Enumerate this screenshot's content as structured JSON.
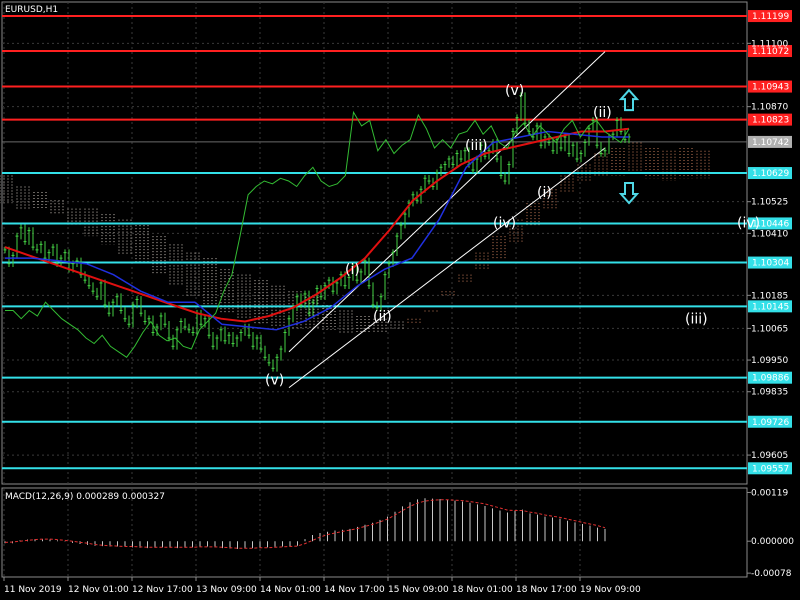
{
  "chart_data": {
    "type": "line",
    "title": "EURUSD,H1",
    "price_axis": {
      "ylim": [
        1.095,
        1.1125
      ],
      "ticks": [
        "1.11100",
        "1.10870",
        "1.10525",
        "1.10410",
        "1.10185",
        "1.10065",
        "1.09950",
        "1.09835",
        "1.09605"
      ]
    },
    "time_axis": {
      "labels": [
        "11 Nov 2019",
        "12 Nov 01:00",
        "12 Nov 17:00",
        "13 Nov 09:00",
        "14 Nov 01:00",
        "14 Nov 17:00",
        "15 Nov 09:00",
        "18 Nov 01:00",
        "18 Nov 17:00",
        "19 Nov 09:00"
      ]
    },
    "current_price": "1.10742",
    "horizontal_levels": {
      "resistance": [
        {
          "value": 1.11199,
          "label": "1.11199"
        },
        {
          "value": 1.11072,
          "label": "1.11072"
        },
        {
          "value": 1.10943,
          "label": "1.10943"
        },
        {
          "value": 1.10823,
          "label": "1.10823"
        }
      ],
      "support": [
        {
          "value": 1.10629,
          "label": "1.10629"
        },
        {
          "value": 1.10446,
          "label": "1.10446"
        },
        {
          "value": 1.10304,
          "label": "1.10304"
        },
        {
          "value": 1.10145,
          "label": "1.10145"
        },
        {
          "value": 1.09886,
          "label": "1.09886"
        },
        {
          "value": 1.09726,
          "label": "1.09726"
        },
        {
          "value": 1.09557,
          "label": "1.09557"
        }
      ]
    },
    "wave_labels": [
      {
        "text": "(v)",
        "x": 67,
        "y": 1.0988
      },
      {
        "text": "(i)",
        "x": 87,
        "y": 1.1028
      },
      {
        "text": "(ii)",
        "x": 94,
        "y": 1.1011
      },
      {
        "text": "(iii)",
        "x": 117,
        "y": 1.1073
      },
      {
        "text": "(iv)",
        "x": 124,
        "y": 1.1045
      },
      {
        "text": "(v)",
        "x": 127,
        "y": 1.1093
      },
      {
        "text": "(i)",
        "x": 135,
        "y": 1.1056
      },
      {
        "text": "(ii)",
        "x": 149,
        "y": 1.1085
      },
      {
        "text": "(iii)",
        "x": 172,
        "y": 1.101
      },
      {
        "text": "(iv)",
        "x": 185,
        "y": 1.1045
      }
    ],
    "channel": {
      "lower": [
        [
          71,
          1.0985
        ],
        [
          150,
          1.1072
        ]
      ],
      "upper": [
        [
          71,
          1.0998
        ],
        [
          150,
          1.1107
        ]
      ]
    },
    "arrows": [
      {
        "direction": "up",
        "x": 156,
        "y": 1.1089,
        "color": "#4FD8E6"
      },
      {
        "direction": "down",
        "x": 156,
        "y": 1.1056,
        "color": "#4FD8E6"
      }
    ],
    "series": [
      {
        "name": "",
        "color": "#44D144",
        "values": [
          1.1035,
          1.103,
          1.1033,
          1.104,
          1.1043,
          1.1038,
          1.1042,
          1.1036,
          1.1035,
          1.1037,
          1.1032,
          1.1034,
          1.1036,
          1.103,
          1.1032,
          1.1034,
          1.1028,
          1.103,
          1.1031,
          1.1026,
          1.1024,
          1.1022,
          1.102,
          1.1018,
          1.1023,
          1.1015,
          1.1012,
          1.1016,
          1.1018,
          1.1013,
          1.101,
          1.1008,
          1.1015,
          1.1017,
          1.1012,
          1.1009,
          1.101,
          1.1005,
          1.1007,
          1.1011,
          1.1008,
          1.1003,
          1.1,
          1.1006,
          1.1009,
          1.1007,
          1.1006,
          1.1005,
          1.1012,
          1.1008,
          1.101,
          1.1004,
          1.1,
          1.1003,
          1.1006,
          1.1002,
          1.1004,
          1.1001,
          1.1003,
          1.1005,
          1.1007,
          1.1004,
          1.1,
          1.1003,
          1.0999,
          1.0996,
          1.0994,
          1.0992,
          1.0996,
          1.0999,
          1.1005,
          1.101,
          1.1014,
          1.1018,
          1.1015,
          1.1019,
          1.1012,
          1.1016,
          1.1021,
          1.1018,
          1.1022,
          1.1024,
          1.102,
          1.1023,
          1.1026,
          1.1022,
          1.1025,
          1.1029,
          1.1024,
          1.1027,
          1.1031,
          1.1022,
          1.1015,
          1.1014,
          1.1018,
          1.1026,
          1.103,
          1.1034,
          1.104,
          1.1044,
          1.1048,
          1.1052,
          1.1055,
          1.1053,
          1.1057,
          1.1061,
          1.106,
          1.1058,
          1.1063,
          1.1065,
          1.1066,
          1.1068,
          1.1066,
          1.107,
          1.1068,
          1.1071,
          1.1066,
          1.1064,
          1.1068,
          1.1073,
          1.1069,
          1.1071,
          1.1074,
          1.1068,
          1.1062,
          1.106,
          1.1066,
          1.1078,
          1.1083,
          1.1091,
          1.1081,
          1.1078,
          1.1076,
          1.108,
          1.1073,
          1.1076,
          1.1074,
          1.1071,
          1.1075,
          1.1072,
          1.1076,
          1.107,
          1.1073,
          1.1068,
          1.107,
          1.1074,
          1.1079,
          1.1082,
          1.1073,
          1.107,
          1.1071,
          1.1076,
          1.1077,
          1.1082,
          1.1078,
          1.1075,
          1.1076
        ]
      },
      {
        "name": "",
        "color": "#E01010",
        "values": [
          1.1036,
          1.1033,
          1.103,
          1.1027,
          1.1024,
          1.1021,
          1.1018,
          1.1015,
          1.1012,
          1.101,
          1.1009,
          1.1011,
          1.1014,
          1.1019,
          1.1025,
          1.1032,
          1.1042,
          1.1053,
          1.106,
          1.1066,
          1.107,
          1.1072,
          1.1074,
          1.1076,
          1.1078,
          1.1078,
          1.1079
        ]
      },
      {
        "name": "",
        "color": "#2030E0",
        "values": [
          1.1032,
          1.1032,
          1.1031,
          1.103,
          1.1026,
          1.102,
          1.1016,
          1.1016,
          1.1008,
          1.1007,
          1.1006,
          1.1009,
          1.1014,
          1.1022,
          1.1028,
          1.1032,
          1.1046,
          1.1065,
          1.1074,
          1.1076,
          1.1078,
          1.1077,
          1.1076,
          1.1076
        ]
      },
      {
        "name": "",
        "color": "#33BB33",
        "values": [
          1.1013,
          1.1013,
          1.101,
          1.1013,
          1.1011,
          1.1016,
          1.1013,
          1.101,
          1.1008,
          1.1006,
          1.1003,
          1.1001,
          1.1004,
          1.1,
          1.0998,
          1.0996,
          1.1,
          1.1005,
          1.1009,
          1.1004,
          1.1002,
          1.1003,
          1.1,
          1.0999,
          1.1006,
          1.1009,
          1.1012,
          1.102,
          1.1026,
          1.104,
          1.1055,
          1.1058,
          1.106,
          1.1059,
          1.1061,
          1.106,
          1.1058,
          1.1062,
          1.1065,
          1.106,
          1.1058,
          1.1059,
          1.1062,
          1.1085,
          1.108,
          1.1082,
          1.1071,
          1.1075,
          1.107,
          1.1073,
          1.1075,
          1.1084,
          1.1079,
          1.1072,
          1.1075,
          1.1072,
          1.1077,
          1.1078,
          1.1082,
          1.1077,
          1.108,
          1.1074,
          1.1072,
          1.1078,
          1.1081,
          1.1076,
          1.108,
          1.1077,
          1.1074,
          1.1079,
          1.1082,
          1.1076,
          1.108,
          1.1082,
          1.1078,
          1.1076,
          1.1074,
          1.1079
        ]
      }
    ],
    "cloud": {
      "color_bear": "#F0E6DC",
      "color_bull": "#E8926A",
      "upper": [
        1.1062,
        1.1058,
        1.1056,
        1.1053,
        1.105,
        1.105,
        1.1048,
        1.1046,
        1.1044,
        1.104,
        1.1037,
        1.1034,
        1.1032,
        1.1028,
        1.1026,
        1.1024,
        1.1022,
        1.102,
        1.1018,
        1.1015,
        1.1013,
        1.1011,
        1.101,
        1.1009,
        1.101,
        1.1013,
        1.102,
        1.1026,
        1.1034,
        1.104,
        1.1046,
        1.1052,
        1.1057,
        1.1062,
        1.1066,
        1.107,
        1.1072,
        1.1074,
        1.1072,
        1.1071,
        1.1072,
        1.1071
      ],
      "lower": [
        1.1052,
        1.105,
        1.105,
        1.1048,
        1.1044,
        1.104,
        1.1037,
        1.1033,
        1.103,
        1.1026,
        1.1022,
        1.1018,
        1.1015,
        1.1012,
        1.101,
        1.1008,
        1.1007,
        1.1006,
        1.1006,
        1.1006,
        1.1005,
        1.1005,
        1.1005,
        1.1006,
        1.1008,
        1.1012,
        1.1018,
        1.1023,
        1.1028,
        1.1032,
        1.1038,
        1.1044,
        1.105,
        1.1056,
        1.106,
        1.1062,
        1.1062,
        1.1062,
        1.1061,
        1.106,
        1.1061,
        1.1061
      ]
    },
    "macd": {
      "title": "MACD(12,26,9) 0.000289 0.000327",
      "ylim": [
        -0.00085,
        0.00125
      ],
      "ticks": [
        "0.00119",
        "0.000000",
        "-0.00078"
      ],
      "histogram": [
        -5e-05,
        -5e-05,
        2e-05,
        4e-05,
        5e-05,
        5e-05,
        4e-05,
        2e-05,
        -1e-05,
        -4e-05,
        -7e-05,
        -9e-05,
        -0.00011,
        -0.00012,
        -0.00013,
        -0.00013,
        -0.00014,
        -0.00015,
        -0.00016,
        -0.00017,
        -0.00016,
        -0.00015,
        -0.00016,
        -0.00017,
        -0.00016,
        -0.00015,
        -0.00014,
        -0.00013,
        -0.00015,
        -0.00017,
        -0.00018,
        -0.00019,
        -0.00018,
        -0.00017,
        -0.00016,
        -0.00015,
        -0.00014,
        -0.00013,
        -0.00012,
        -0.00011,
        5e-05,
        0.00015,
        0.0002,
        0.00023,
        0.00026,
        0.00028,
        0.0003,
        0.00035,
        0.0004,
        0.00045,
        0.00052,
        0.0006,
        0.00072,
        0.00085,
        0.00095,
        0.00102,
        0.00105,
        0.00104,
        0.00103,
        0.00101,
        0.00099,
        0.00097,
        0.00094,
        0.0009,
        0.00086,
        0.0008,
        0.00075,
        0.0007,
        0.00074,
        0.00077,
        0.00068,
        0.00065,
        0.0006,
        0.00058,
        0.00055,
        0.0005,
        0.00046,
        0.00042,
        0.00038,
        0.00033,
        0.0003
      ],
      "signal": [
        -3e-05,
        -2e-05,
        0.0,
        2e-05,
        4e-05,
        5e-05,
        5e-05,
        4e-05,
        2e-05,
        0.0,
        -3e-05,
        -5e-05,
        -8e-05,
        -0.0001,
        -0.00011,
        -0.00012,
        -0.00013,
        -0.00013,
        -0.00014,
        -0.00015,
        -0.00015,
        -0.00015,
        -0.00015,
        -0.00015,
        -0.00015,
        -0.00015,
        -0.00014,
        -0.00014,
        -0.00014,
        -0.00015,
        -0.00016,
        -0.00017,
        -0.00017,
        -0.00017,
        -0.00016,
        -0.00016,
        -0.00015,
        -0.00014,
        -0.00013,
        -0.00012,
        -6e-05,
        2e-05,
        0.0001,
        0.00016,
        0.0002,
        0.00024,
        0.00027,
        0.00031,
        0.00036,
        0.00041,
        0.00047,
        0.00054,
        0.00064,
        0.00075,
        0.00085,
        0.00093,
        0.00098,
        0.001,
        0.00101,
        0.00101,
        0.001,
        0.00099,
        0.00097,
        0.00094,
        0.00091,
        0.00086,
        0.00081,
        0.00076,
        0.00075,
        0.00075,
        0.00071,
        0.00068,
        0.00064,
        0.00061,
        0.00058,
        0.00054,
        0.0005,
        0.00046,
        0.00042,
        0.00038,
        0.00033
      ]
    }
  }
}
